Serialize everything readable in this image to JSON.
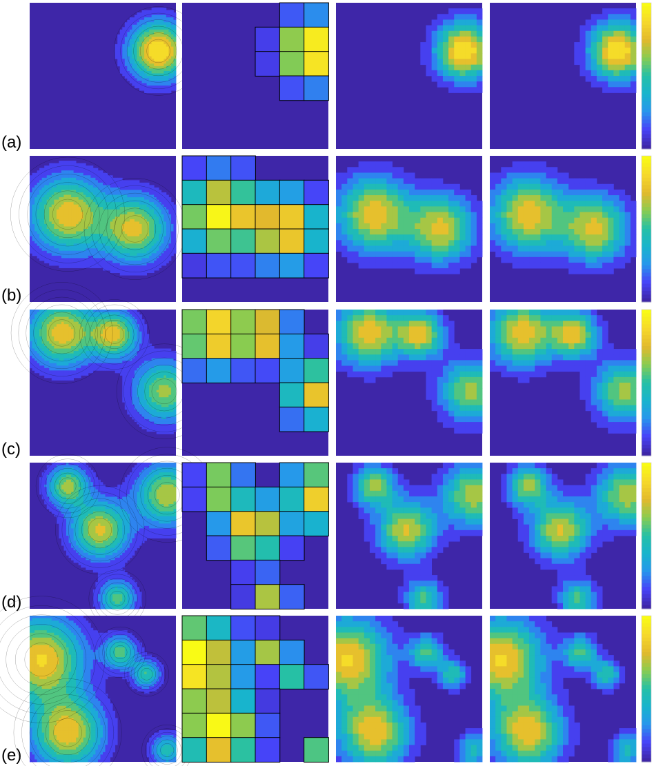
{
  "figure": {
    "rows": [
      {
        "label": "(a)"
      },
      {
        "label": "(b)"
      },
      {
        "label": "(c)"
      },
      {
        "label": "(d)"
      },
      {
        "label": "(e)"
      }
    ],
    "colormap": {
      "name": "parula",
      "stops": [
        "#3e26a8",
        "#4743f8",
        "#2797ec",
        "#18b4cd",
        "#25c0a6",
        "#88cc51",
        "#e2b92d",
        "#f5d82b",
        "#f9fb15"
      ]
    },
    "line_color": "#000000"
  }
}
